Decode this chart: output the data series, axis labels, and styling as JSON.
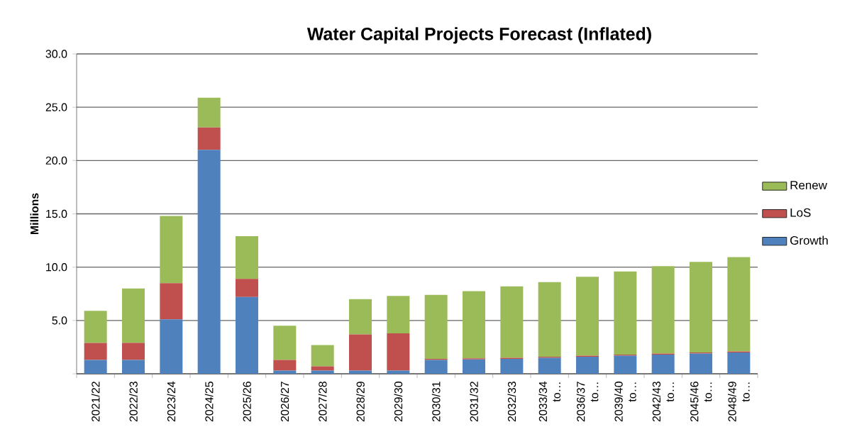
{
  "chart_data": {
    "type": "bar",
    "title": "Water Capital Projects Forecast (Inflated)",
    "ylabel": "Millions",
    "categories": [
      "2021/22",
      "2022/23",
      "2023/24",
      "2024/25",
      "2025/26",
      "2026/27",
      "2027/28",
      "2028/29",
      "2029/30",
      "2030/31",
      "2031/32",
      "2032/33",
      "2033/34 to…",
      "2036/37 to…",
      "2039/40 to…",
      "2042/43 to…",
      "2045/46 to…",
      "2048/49 to…"
    ],
    "stacked": true,
    "series": [
      {
        "name": "Growth",
        "color": "#4f81bd",
        "values": [
          1.3,
          1.3,
          5.1,
          21.0,
          7.2,
          0.3,
          0.3,
          0.3,
          0.3,
          1.3,
          1.35,
          1.4,
          1.5,
          1.6,
          1.7,
          1.8,
          1.9,
          2.0
        ]
      },
      {
        "name": "LoS",
        "color": "#c0504d",
        "values": [
          1.6,
          1.6,
          3.4,
          2.1,
          1.7,
          1.0,
          0.4,
          3.4,
          3.5,
          0.1,
          0.1,
          0.1,
          0.1,
          0.1,
          0.1,
          0.1,
          0.1,
          0.1
        ]
      },
      {
        "name": "Renew",
        "color": "#9bbb59",
        "values": [
          3.0,
          5.1,
          6.3,
          2.8,
          4.0,
          3.2,
          2.0,
          3.3,
          3.5,
          6.0,
          6.3,
          6.7,
          7.0,
          7.4,
          7.8,
          8.2,
          8.5,
          8.85
        ]
      }
    ],
    "ylim": [
      0,
      30
    ],
    "yticks": [
      {
        "value": 0,
        "label": null
      },
      {
        "value": 5,
        "label": "5.0"
      },
      {
        "value": 10,
        "label": "10.0"
      },
      {
        "value": 15,
        "label": "15.0"
      },
      {
        "value": 20,
        "label": "20.0"
      },
      {
        "value": 25,
        "label": "25.0"
      },
      {
        "value": 30,
        "label": "30.0"
      }
    ],
    "grid": "y",
    "legend": "right"
  }
}
